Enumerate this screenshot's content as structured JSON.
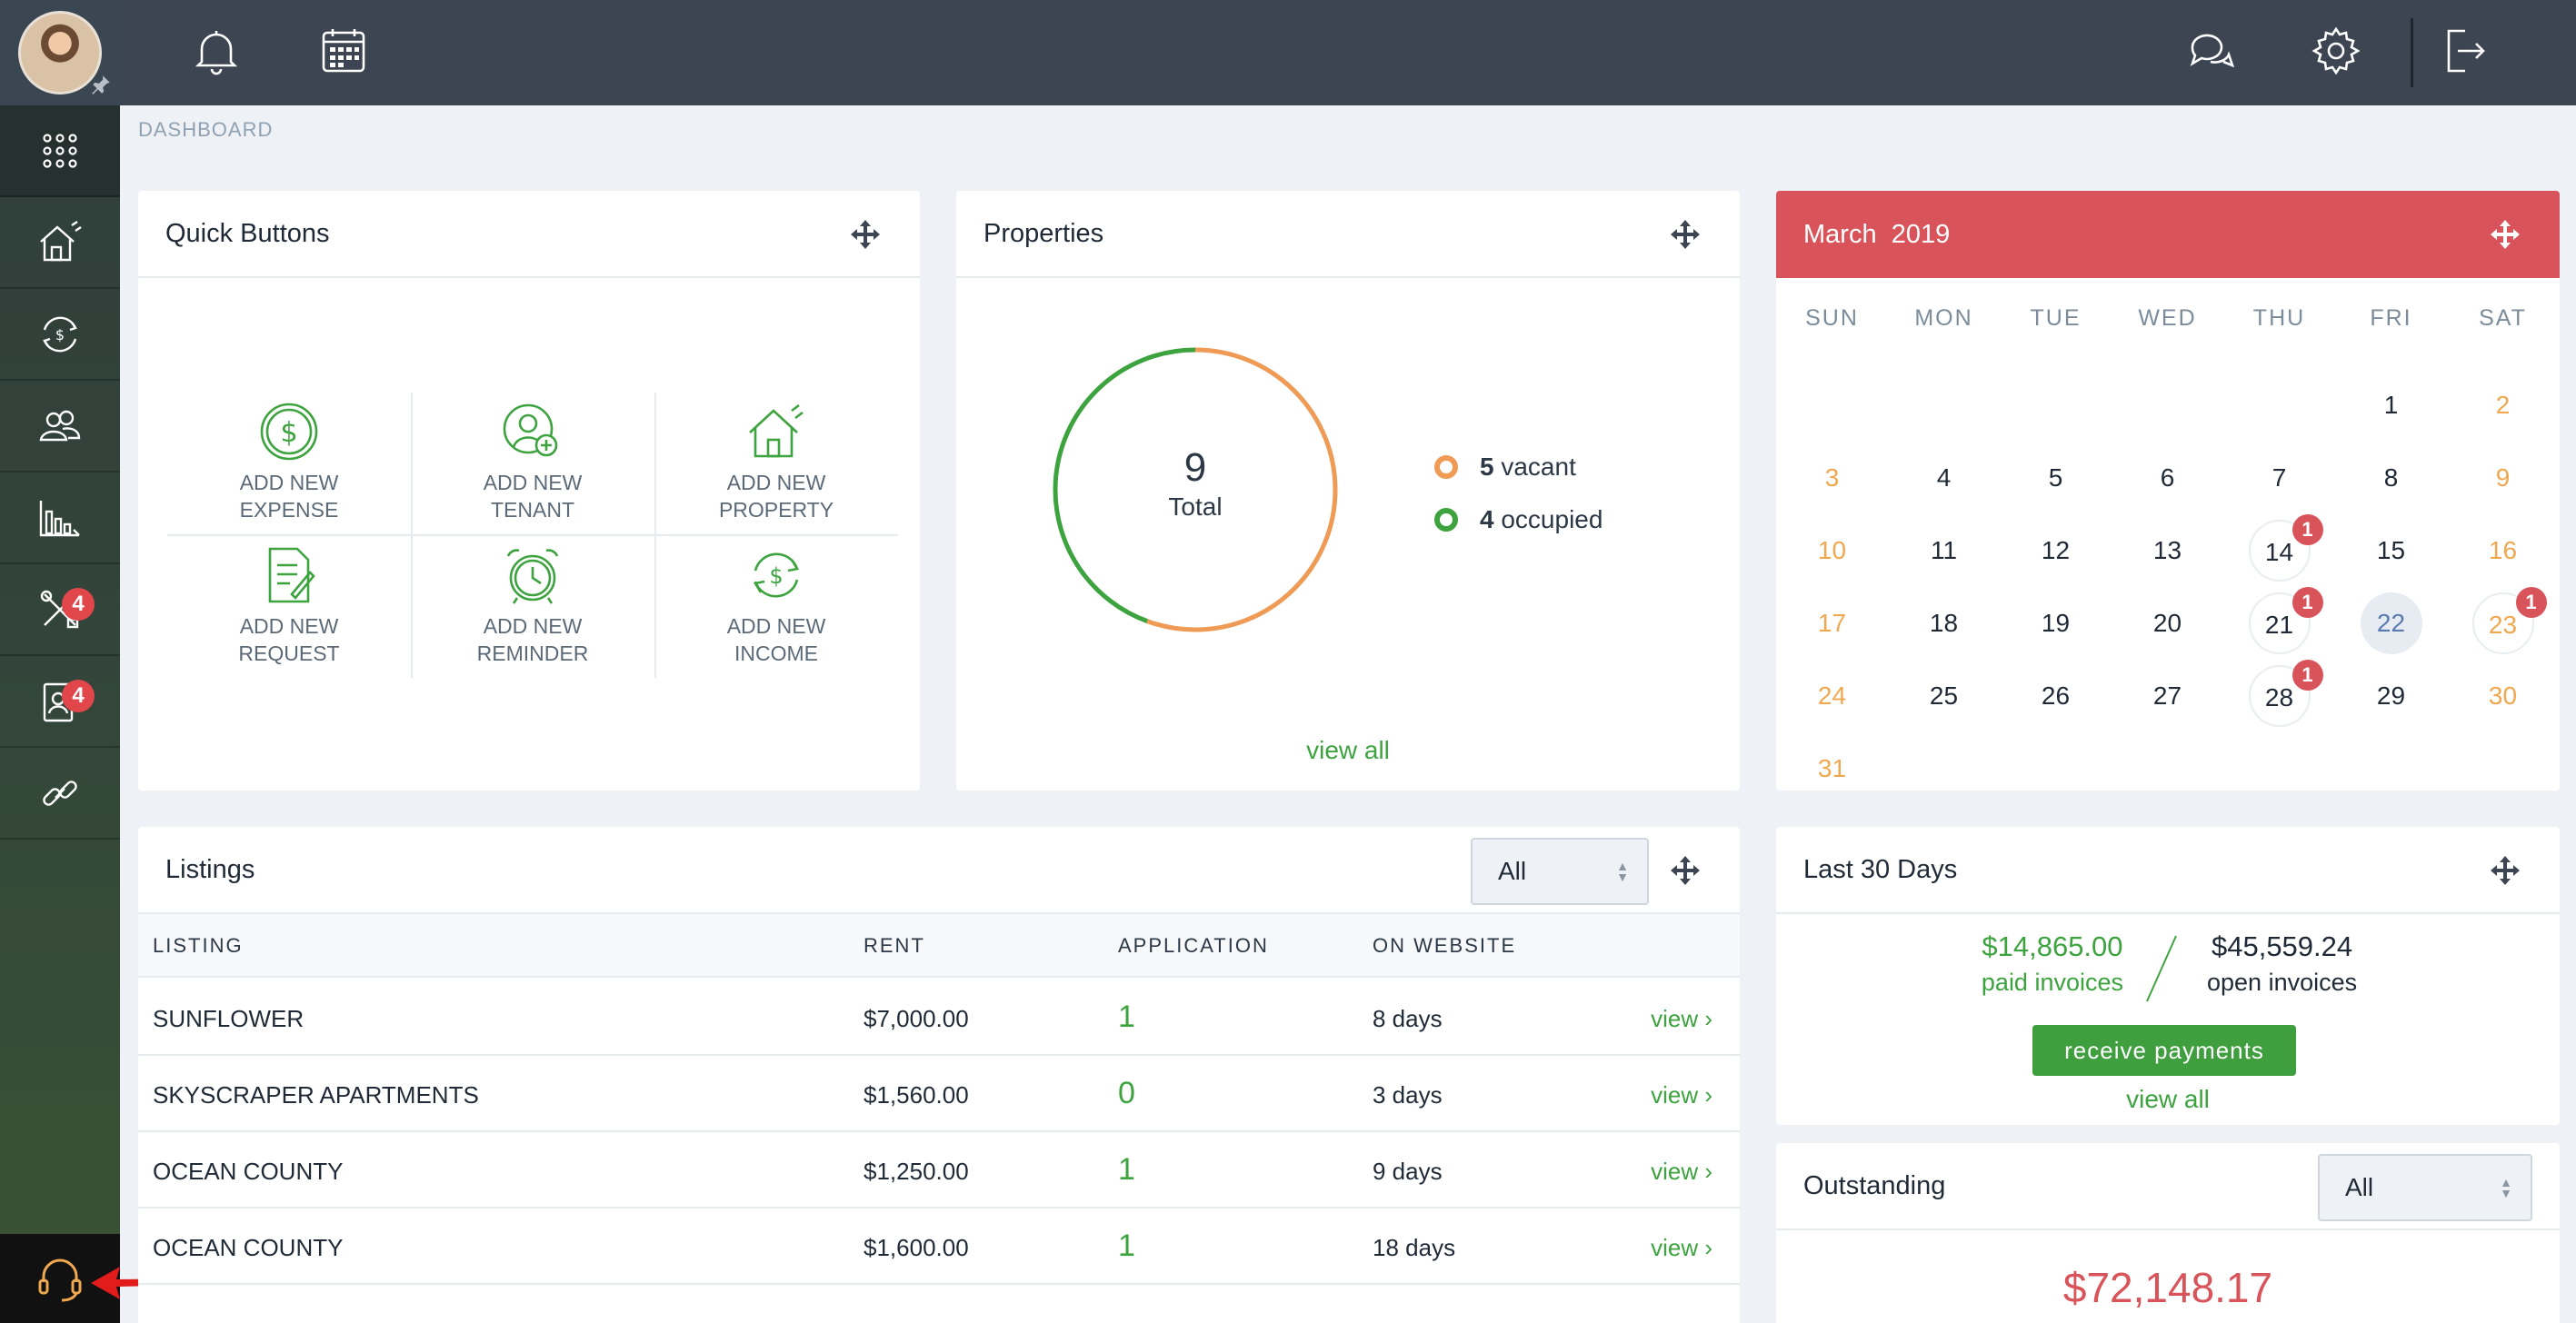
{
  "topbar": {
    "icons": [
      "bell-icon",
      "calendar-icon",
      "chat-icon",
      "gear-icon",
      "logout-icon"
    ]
  },
  "sidebar": {
    "items": [
      {
        "name": "apps-grid-icon",
        "badge": ""
      },
      {
        "name": "properties-icon",
        "badge": ""
      },
      {
        "name": "accounting-icon",
        "badge": ""
      },
      {
        "name": "people-icon",
        "badge": ""
      },
      {
        "name": "reports-icon",
        "badge": ""
      },
      {
        "name": "maintenance-icon",
        "badge": "4"
      },
      {
        "name": "leasing-icon",
        "badge": "4"
      },
      {
        "name": "link-icon",
        "badge": ""
      }
    ],
    "support": "headset-icon"
  },
  "breadcrumb": "DASHBOARD",
  "quick_buttons": {
    "title": "Quick Buttons",
    "items": [
      {
        "line1": "ADD NEW",
        "line2": "EXPENSE",
        "icon": "dollar-circle-icon"
      },
      {
        "line1": "ADD NEW",
        "line2": "TENANT",
        "icon": "add-user-icon"
      },
      {
        "line1": "ADD NEW",
        "line2": "PROPERTY",
        "icon": "house-icon"
      },
      {
        "line1": "ADD NEW",
        "line2": "REQUEST",
        "icon": "document-icon"
      },
      {
        "line1": "ADD NEW",
        "line2": "REMINDER",
        "icon": "alarm-clock-icon"
      },
      {
        "line1": "ADD NEW",
        "line2": "INCOME",
        "icon": "income-cycle-icon"
      }
    ]
  },
  "properties": {
    "title": "Properties",
    "total": "9",
    "total_label": "Total",
    "vacant_count": "5",
    "vacant_label": "vacant",
    "occupied_count": "4",
    "occupied_label": "occupied",
    "view_all": "view all",
    "vacant": 5,
    "occupied": 4,
    "colors": {
      "vacant": "#ef9a55",
      "occupied": "#3da33f"
    }
  },
  "calendar": {
    "month": "March",
    "year": "2019",
    "days_of_week": [
      "SUN",
      "MON",
      "TUE",
      "WED",
      "THU",
      "FRI",
      "SAT"
    ],
    "weeks": [
      [
        "",
        "",
        "",
        "",
        "",
        "1",
        "2"
      ],
      [
        "3",
        "4",
        "5",
        "6",
        "7",
        "8",
        "9"
      ],
      [
        "10",
        "11",
        "12",
        "13",
        "14",
        "15",
        "16"
      ],
      [
        "17",
        "18",
        "19",
        "20",
        "21",
        "22",
        "23"
      ],
      [
        "24",
        "25",
        "26",
        "27",
        "28",
        "29",
        "30"
      ],
      [
        "31",
        "",
        "",
        "",
        "",
        "",
        ""
      ]
    ],
    "events": {
      "14": "1",
      "21": "1",
      "23": "1",
      "28": "1"
    },
    "today": "22"
  },
  "listings": {
    "title": "Listings",
    "filter": "All",
    "columns": [
      "LISTING",
      "RENT",
      "APPLICATION",
      "ON WEBSITE"
    ],
    "rows": [
      {
        "listing": "SUNFLOWER",
        "rent": "$7,000.00",
        "application": "1",
        "on_website": "8 days",
        "action": "view"
      },
      {
        "listing": "SKYSCRAPER APARTMENTS",
        "rent": "$1,560.00",
        "application": "0",
        "on_website": "3 days",
        "action": "view"
      },
      {
        "listing": "OCEAN COUNTY",
        "rent": "$1,250.00",
        "application": "1",
        "on_website": "9 days",
        "action": "view"
      },
      {
        "listing": "OCEAN COUNTY",
        "rent": "$1,600.00",
        "application": "1",
        "on_website": "18 days",
        "action": "view"
      }
    ]
  },
  "last30": {
    "title": "Last 30 Days",
    "paid_amount": "$14,865.00",
    "paid_label": "paid invoices",
    "open_amount": "$45,559.24",
    "open_label": "open invoices",
    "button": "receive payments",
    "view_all": "view all"
  },
  "outstanding": {
    "title": "Outstanding",
    "filter": "All",
    "amount": "$72,148.17"
  }
}
